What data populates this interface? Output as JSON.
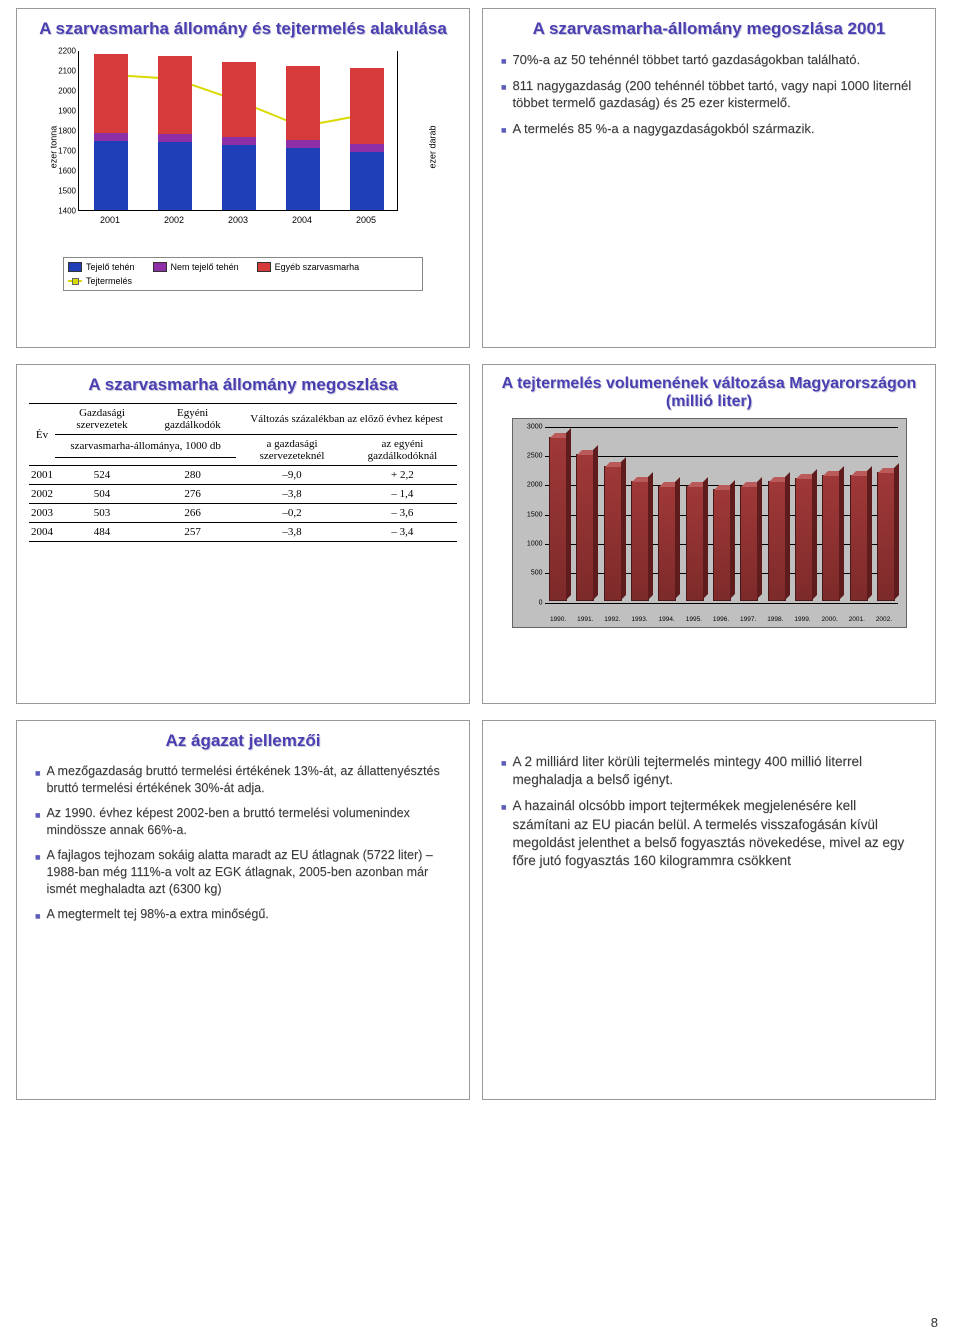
{
  "page_number": "8",
  "colors": {
    "title": "#4a3fb0",
    "bullet": "#5b5bbe",
    "grid": "#000000",
    "bar3d_fill": "#8a3232",
    "bar3d_top": "#bb5a5a"
  },
  "slide1": {
    "title": "A szarvasmarha állomány és tejtermelés alakulása",
    "chart": {
      "y_left_label": "ezer tonna",
      "y_right_label": "ezer darab",
      "y_left_min": 1400,
      "y_left_max": 2200,
      "y_left_step": 100,
      "y_right_min": 0,
      "y_right_max": 800,
      "y_right_step": 100,
      "categories": [
        "2001",
        "2002",
        "2003",
        "2004",
        "2005"
      ],
      "series": [
        {
          "name": "Tejelő tehén",
          "color": "#1f3fb8",
          "values": [
            345,
            340,
            325,
            310,
            290
          ]
        },
        {
          "name": "Nem tejelő tehén",
          "color": "#8e2fa8",
          "values": [
            40,
            40,
            40,
            40,
            40
          ]
        },
        {
          "name": "Egyéb szarvasmarha",
          "color": "#d63a3a",
          "values": [
            395,
            390,
            375,
            370,
            380
          ]
        }
      ],
      "line": {
        "name": "Tejtermelés",
        "color": "#d9d900",
        "values": [
          2080,
          2060,
          1950,
          1820,
          1880
        ]
      }
    }
  },
  "slide2": {
    "title": "A szarvasmarha-állomány megoszlása 2001",
    "bullets": [
      "70%-a az 50 tehénnél többet tartó gazdaságokban található.",
      "811 nagygazdaság (200 tehénnél többet tartó, vagy napi 1000 liternél többet termelő gazdaság) és 25 ezer kistermelő.",
      "A termelés 85 %-a a nagygazdaságokból származik."
    ]
  },
  "slide3": {
    "title": "A szarvasmarha állomány megoszlása",
    "table": {
      "head_row1": [
        "Év",
        "Gazdasági szervezetek",
        "Egyéni gazdálkodók",
        "Változás százalékban az előző évhez képest"
      ],
      "head_row2_span": "szarvasmarha-állománya, 1000 db",
      "head_row2_cols": [
        "a gazdasági szervezeteknél",
        "az egyéni gazdálkodóknál"
      ],
      "rows": [
        [
          "2001",
          "524",
          "280",
          "–9,0",
          "+ 2,2"
        ],
        [
          "2002",
          "504",
          "276",
          "–3,8",
          "– 1,4"
        ],
        [
          "2003",
          "503",
          "266",
          "–0,2",
          "– 3,6"
        ],
        [
          "2004",
          "484",
          "257",
          "–3,8",
          "– 3,4"
        ]
      ]
    }
  },
  "slide4": {
    "title": "A tejtermelés volumenének változása Magyarországon (millió liter)",
    "chart": {
      "y_min": 0,
      "y_max": 3000,
      "y_step": 500,
      "categories": [
        "1990.",
        "1991.",
        "1992.",
        "1993.",
        "1994.",
        "1995.",
        "1996.",
        "1997.",
        "1998.",
        "1999.",
        "2000.",
        "2001.",
        "2002."
      ],
      "values": [
        2800,
        2500,
        2300,
        2050,
        1950,
        1950,
        1900,
        1950,
        2050,
        2100,
        2150,
        2150,
        2200
      ],
      "bar_color": "#8a3232",
      "bg": "#c0c0c0"
    }
  },
  "slide5": {
    "title": "Az ágazat jellemzői",
    "bullets": [
      "A mezőgazdaság bruttó termelési értékének 13%-át, az állattenyésztés bruttó termelési értékének 30%-át adja.",
      "Az 1990. évhez képest 2002-ben a bruttó termelési volumenindex mindössze annak 66%-a.",
      "A fajlagos tejhozam sokáig alatta maradt az EU átlagnak (5722 liter) – 1988-ban még 111%-a volt az EGK átlagnak, 2005-ben azonban már ismét meghaladta azt (6300 kg)",
      "A megtermelt tej 98%-a extra minőségű."
    ]
  },
  "slide6": {
    "bullets": [
      "A 2 milliárd liter körüli tejtermelés mintegy 400 millió literrel meghaladja a belső igényt.",
      "A hazainál olcsóbb import tejtermékek megjelenésére kell számítani az EU piacán belül. A termelés visszafogásán kívül megoldást jelenthet a belső fogyasztás növekedése, mivel az egy főre jutó fogyasztás 160 kilogrammra csökkent"
    ]
  }
}
